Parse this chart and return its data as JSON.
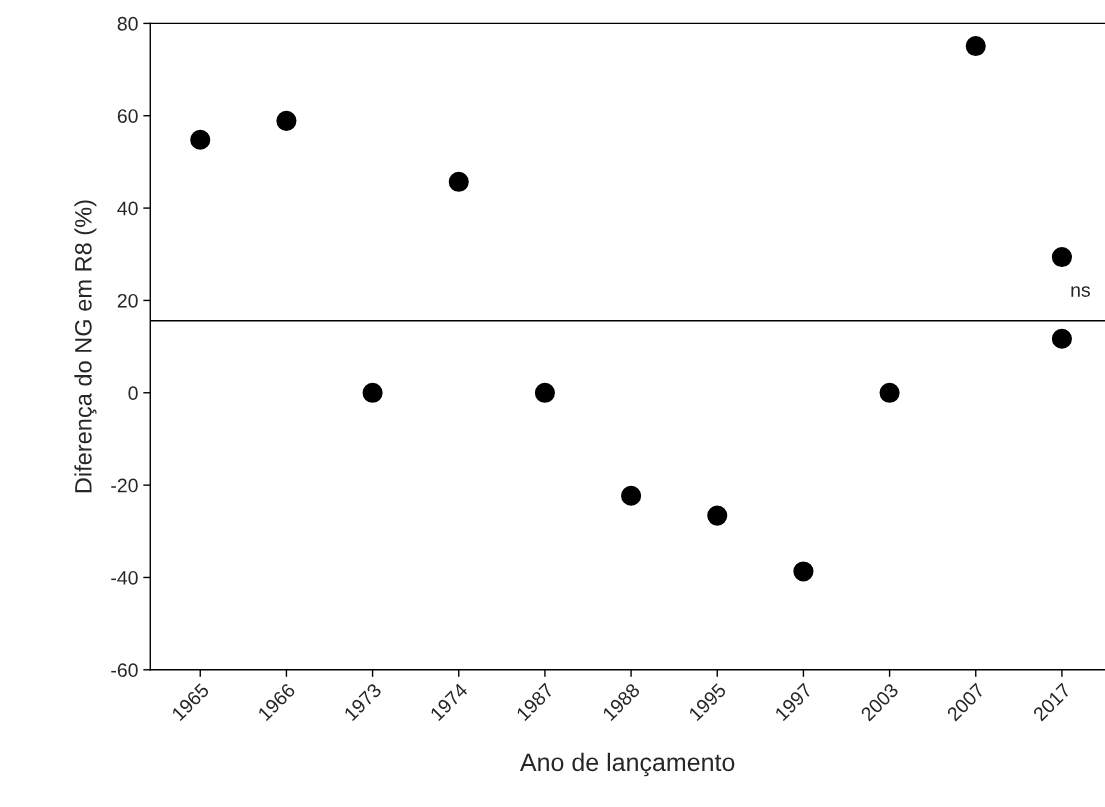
{
  "chart_data": {
    "type": "scatter",
    "xlabel": "Ano de lançamento",
    "ylabel": "Diferença do NG em R8 (%)",
    "categories": [
      "1965",
      "1966",
      "1973",
      "1974",
      "1987",
      "1988",
      "1995",
      "1997",
      "2003",
      "2007",
      "2017"
    ],
    "series": [
      {
        "color": "#000000",
        "values": [
          54.8,
          58.9,
          0,
          45.7,
          0,
          -22.3,
          -26.6,
          -38.7,
          0,
          75.1,
          29.4
        ]
      },
      {
        "color": "#000000",
        "values": [
          null,
          null,
          null,
          null,
          null,
          null,
          null,
          null,
          null,
          null,
          11.7
        ]
      }
    ],
    "ylim": [
      -60,
      80
    ],
    "yticks": [
      -60,
      -40,
      -20,
      0,
      20,
      40,
      60,
      80
    ],
    "ref_lines": [
      {
        "axis": "y",
        "value": 15.6,
        "color": "#000000"
      }
    ],
    "annotations": [
      "ns"
    ],
    "marker": "circle",
    "grid": false,
    "legend": false
  }
}
